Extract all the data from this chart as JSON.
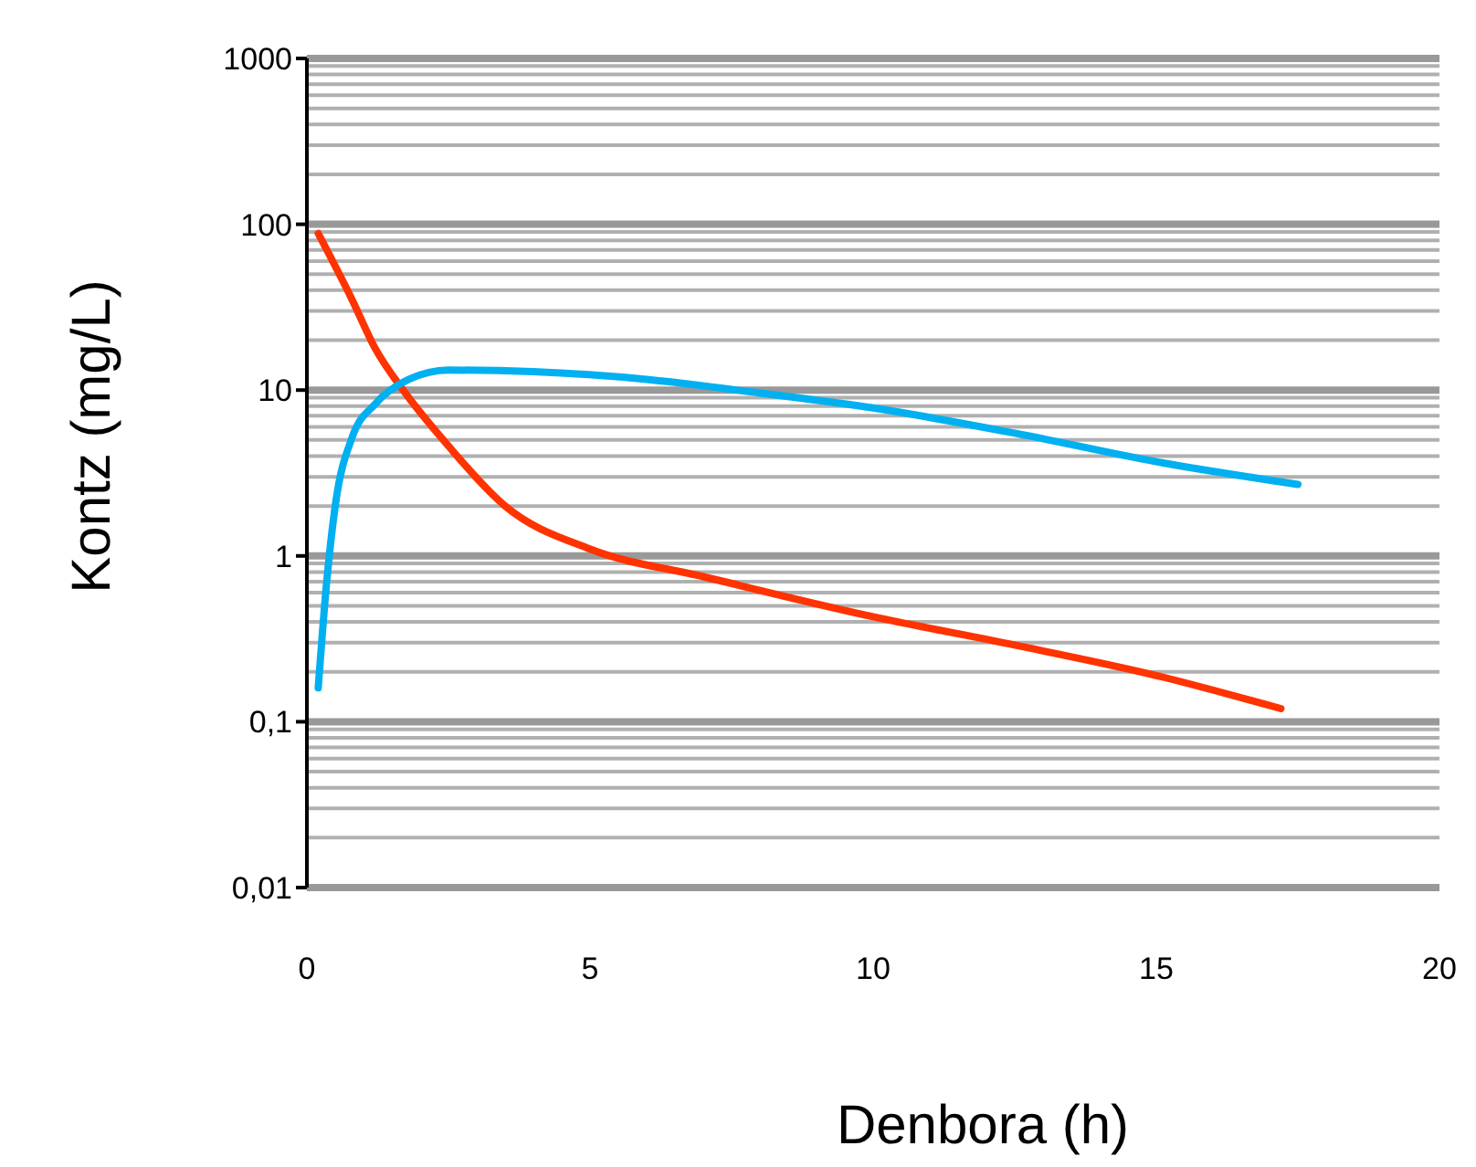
{
  "chart_data": {
    "type": "line",
    "xlabel": "Denbora (h)",
    "ylabel": "Kontz  (mg/L)",
    "log": "y",
    "grid": "y",
    "marker": "none",
    "xlim": [
      0,
      20
    ],
    "xticks": [
      0,
      5,
      10,
      15,
      20
    ],
    "ylim": [
      0.01,
      1000
    ],
    "yticks": [
      {
        "value": 0.01,
        "label": "0,01"
      },
      {
        "value": 0.1,
        "label": "0,1"
      },
      1,
      10,
      100,
      1000
    ],
    "series": [
      {
        "color": "#ff3300",
        "x": [
          0.2,
          0.8,
          1.2,
          1.7,
          2.5,
          3.5,
          5,
          7,
          10,
          12.5,
          15,
          17.2
        ],
        "values": [
          88,
          35,
          18,
          10,
          4.6,
          2,
          1.1,
          0.75,
          0.43,
          0.29,
          0.19,
          0.12
        ]
      },
      {
        "color": "#00b0f0",
        "x": [
          0.2,
          0.35,
          0.5,
          0.8,
          1.2,
          1.8,
          2.5,
          4,
          6,
          8,
          10,
          12.5,
          15,
          17.5
        ],
        "values": [
          0.16,
          0.7,
          2,
          5.2,
          8.2,
          11.6,
          13.2,
          12.9,
          11.6,
          9.6,
          7.8,
          5.5,
          3.7,
          2.7
        ]
      }
    ]
  }
}
